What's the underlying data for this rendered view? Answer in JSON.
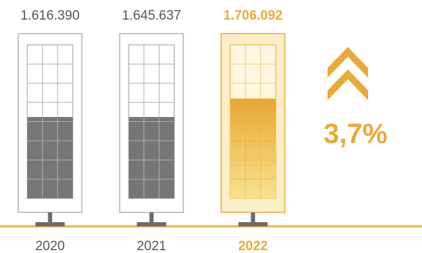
{
  "chart_data": {
    "type": "bar",
    "categories": [
      "2020",
      "2021",
      "2022"
    ],
    "values": [
      "1.616.390",
      "1.645.637",
      "1.706.092"
    ],
    "fill_levels": [
      0.53,
      0.53,
      0.65
    ],
    "highlight_index": 2,
    "change_label": "3,7%",
    "change_direction": "up",
    "title": "",
    "xlabel": "",
    "ylabel": ""
  },
  "colors": {
    "accent": "#e9aa3a",
    "accent_light": "#fbeec9",
    "accent_fill_top": "#e8a833",
    "accent_fill_bottom": "#f8e18e",
    "gray_fill": "#767676",
    "panel_border": "#b3b3b3",
    "stand": "#6b6b6b",
    "text_gray": "#555555",
    "baseline": "#efb04a"
  },
  "icons": {
    "change_indicator": "double-chevron-up-icon"
  }
}
